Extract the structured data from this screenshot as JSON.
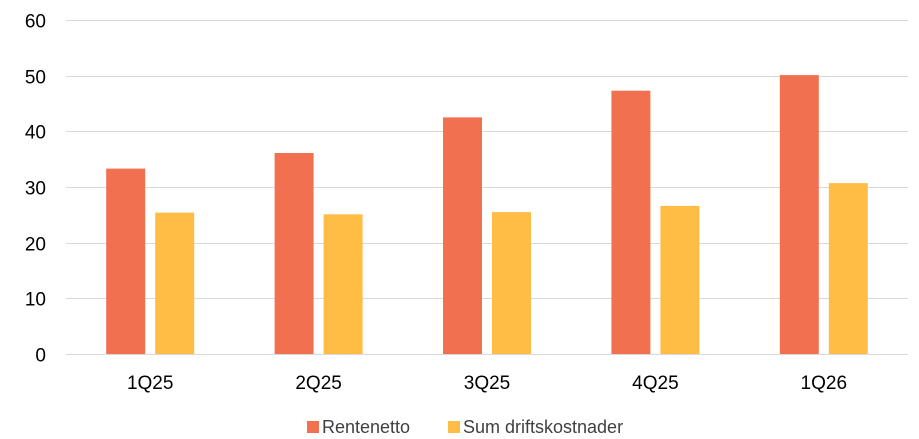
{
  "chart_data": {
    "type": "bar",
    "title": "",
    "xlabel": "",
    "ylabel": "",
    "categories": [
      "1Q25",
      "2Q25",
      "3Q25",
      "4Q25",
      "1Q26"
    ],
    "series": [
      {
        "name": "Rentenetto",
        "color": "#F07050",
        "values": [
          33.3,
          36.1,
          42.5,
          47.3,
          50.1
        ]
      },
      {
        "name": "Sum driftskostnader",
        "color": "#FFBD45",
        "values": [
          25.4,
          25.1,
          25.5,
          26.6,
          30.7
        ]
      }
    ],
    "ylim": [
      0,
      60
    ],
    "yticks": [
      "0",
      "10",
      "20",
      "30",
      "40",
      "50",
      "60"
    ],
    "grid": true,
    "legend_position": "bottom-center"
  }
}
